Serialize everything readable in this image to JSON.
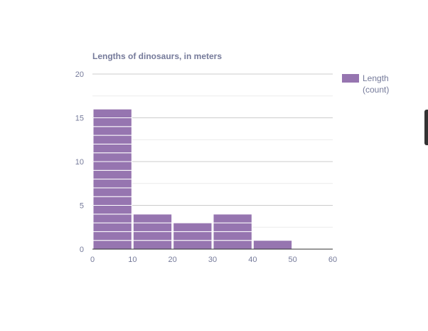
{
  "chart_data": {
    "type": "histogram",
    "title": "Lengths of dinosaurs, in meters",
    "xlabel": "",
    "ylabel": "",
    "bin_edges": [
      0,
      10,
      20,
      30,
      40,
      50
    ],
    "bin_width": 10,
    "counts": [
      16,
      4,
      3,
      4,
      1
    ],
    "xlim": [
      0,
      60
    ],
    "ylim": [
      0,
      20
    ],
    "x_ticks": [
      "0",
      "10",
      "20",
      "30",
      "40",
      "50",
      "60"
    ],
    "y_ticks": [
      "0",
      "5",
      "10",
      "15",
      "20"
    ],
    "legend_label_line1": "Length",
    "legend_label_line2": "(count)",
    "legend_position": "right",
    "grid": true,
    "bar_color": "#9675b0"
  }
}
